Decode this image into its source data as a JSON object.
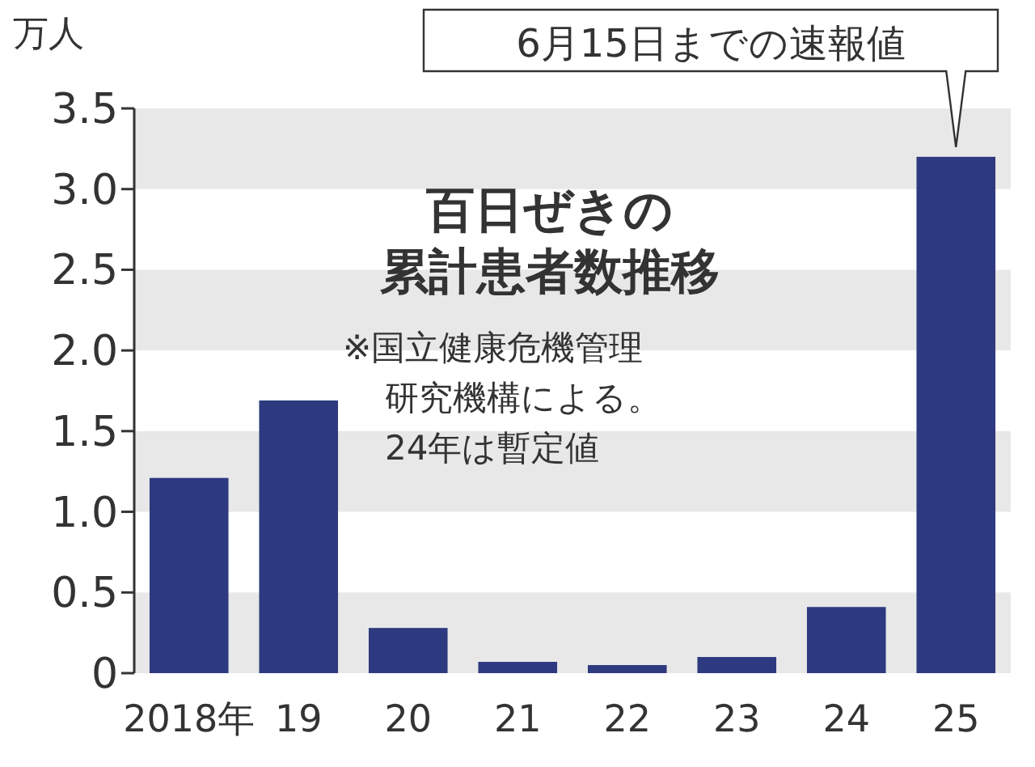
{
  "chart_data": {
    "type": "bar",
    "title": "百日ぜきの",
    "subtitle": "累計患者数推移",
    "ylabel": "万人",
    "categories": [
      "2018年",
      "19",
      "20",
      "21",
      "22",
      "23",
      "24",
      "25"
    ],
    "values": [
      1.21,
      1.69,
      0.28,
      0.07,
      0.05,
      0.1,
      0.41,
      3.2
    ],
    "color": "#2e3a80",
    "ylim": [
      0,
      3.5
    ],
    "yticks": [
      0,
      {
        "value": 0.5,
        "label": "0.5"
      },
      {
        "value": 1,
        "label": "1.0"
      },
      {
        "value": 1.5,
        "label": "1.5"
      },
      {
        "value": 2,
        "label": "2.0"
      },
      {
        "value": 2.5,
        "label": "2.5"
      },
      {
        "value": 3,
        "label": "3.0"
      },
      {
        "value": 3.5,
        "label": "3.5"
      }
    ],
    "bands": [
      {
        "axis": "y",
        "from": 0,
        "to": 0.5,
        "color": "#e8e8e8"
      },
      {
        "axis": "y",
        "from": 1,
        "to": 1.5,
        "color": "#e8e8e8"
      },
      {
        "axis": "y",
        "from": 2,
        "to": 2.5,
        "color": "#e8e8e8"
      },
      {
        "axis": "y",
        "from": 3,
        "to": 3.5,
        "color": "#e8e8e8"
      }
    ],
    "annotations": [
      {
        "text": "6月15日までの速報値",
        "x": "25",
        "y": 3.2
      },
      "※国立健康危機管理",
      "研究機構による。",
      "24年は暫定値"
    ]
  }
}
